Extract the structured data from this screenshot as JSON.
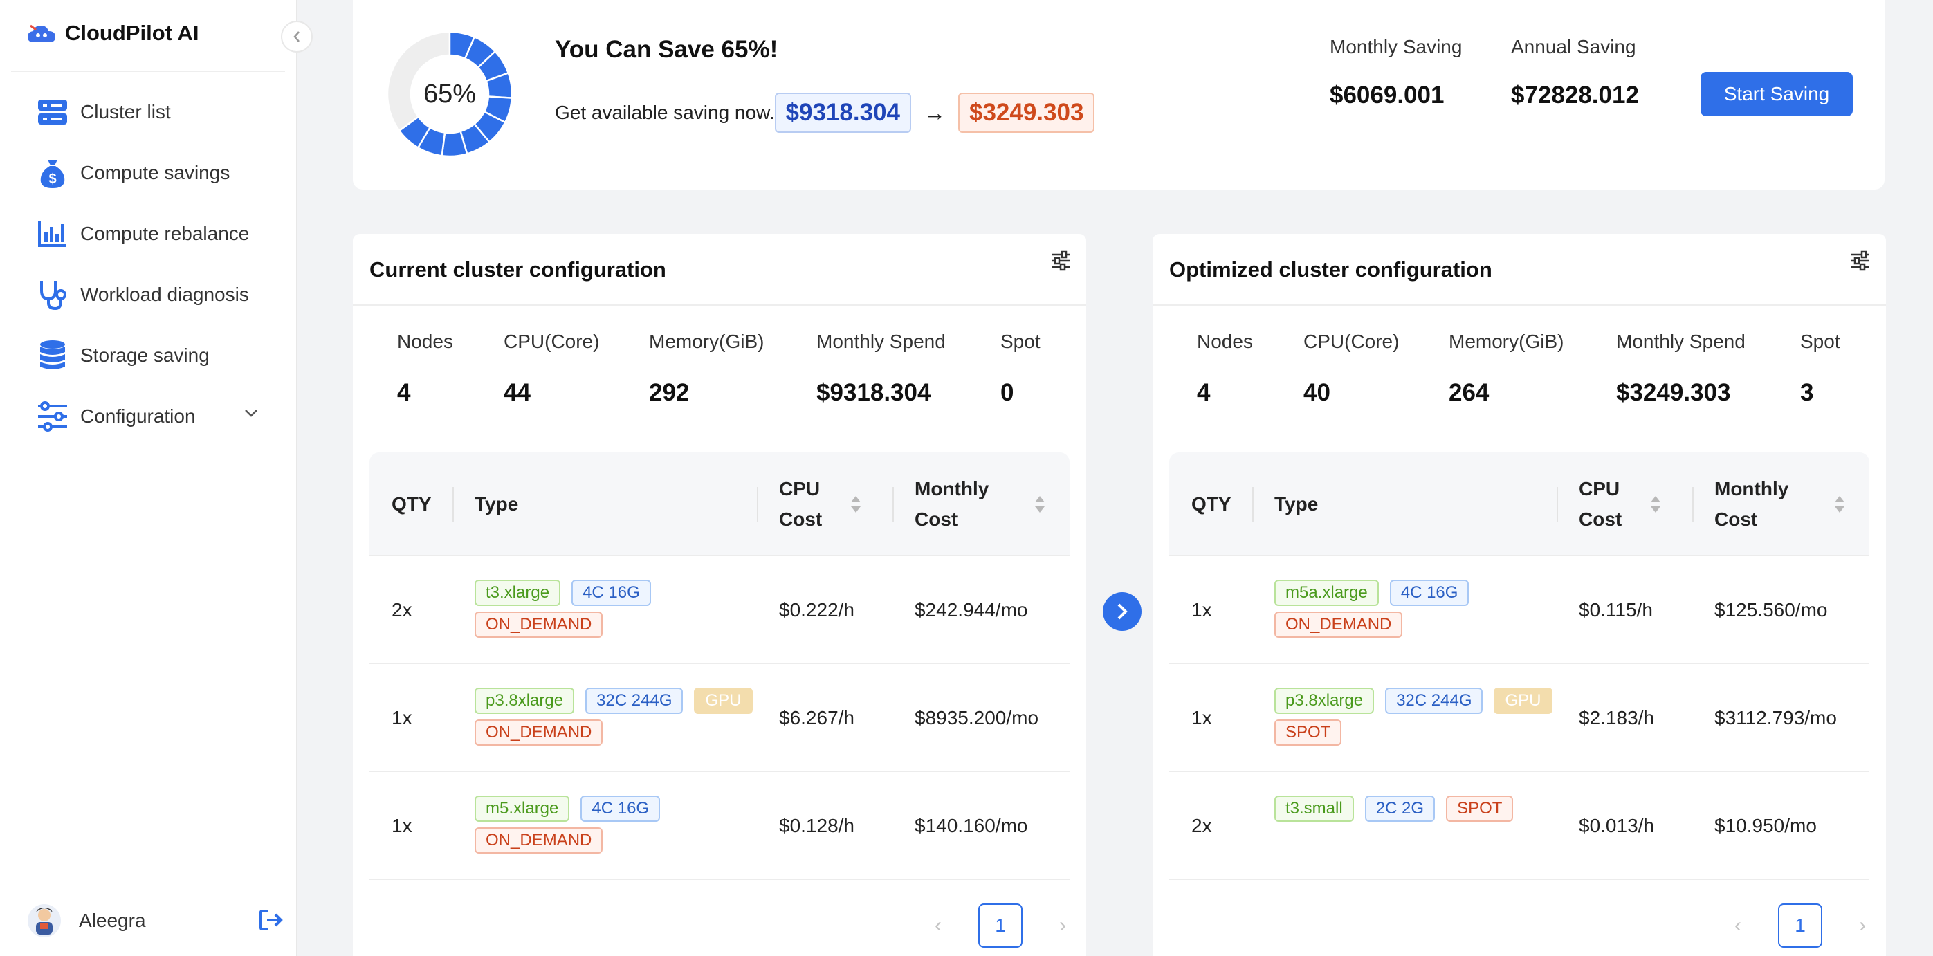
{
  "sidebar": {
    "brand": "CloudPilot AI",
    "items": [
      {
        "label": "Cluster list",
        "icon": "server-icon"
      },
      {
        "label": "Compute savings",
        "icon": "money-bag-icon"
      },
      {
        "label": "Compute rebalance",
        "icon": "bar-chart-icon"
      },
      {
        "label": "Workload diagnosis",
        "icon": "stethoscope-icon"
      },
      {
        "label": "Storage saving",
        "icon": "database-icon"
      },
      {
        "label": "Configuration",
        "icon": "sliders-icon"
      }
    ],
    "user": {
      "name": "Aleegra"
    }
  },
  "summary": {
    "percent": 65,
    "percent_label": "65%",
    "title": "You Can Save 65%!",
    "subtitle": "Get available saving now.",
    "from_amount": "$9318.304",
    "to_amount": "$3249.303",
    "monthly_label": "Monthly Saving",
    "monthly_value": "$6069.001",
    "annual_label": "Annual Saving",
    "annual_value": "$72828.012",
    "start_button": "Start Saving"
  },
  "current": {
    "title": "Current cluster configuration",
    "metrics": {
      "nodes_label": "Nodes",
      "nodes": "4",
      "cpu_label": "CPU(Core)",
      "cpu": "44",
      "mem_label": "Memory(GiB)",
      "mem": "292",
      "spend_label": "Monthly Spend",
      "spend": "$9318.304",
      "spot_label": "Spot",
      "spot": "0"
    },
    "headers": {
      "qty": "QTY",
      "type": "Type",
      "cpu1": "CPU",
      "cpu2": "Cost",
      "mon1": "Monthly",
      "mon2": "Cost"
    },
    "rows": [
      {
        "qty": "2x",
        "tags": [
          {
            "t": "t3.xlarge",
            "c": "green"
          },
          {
            "t": "4C 16G",
            "c": "blue"
          },
          {
            "t": "ON_DEMAND",
            "c": "red"
          }
        ],
        "cpu_cost": "$0.222/h",
        "monthly": "$242.944/mo"
      },
      {
        "qty": "1x",
        "tags": [
          {
            "t": "p3.8xlarge",
            "c": "green"
          },
          {
            "t": "32C 244G",
            "c": "blue"
          },
          {
            "t": "GPU",
            "c": "gold"
          },
          {
            "t": "ON_DEMAND",
            "c": "red"
          }
        ],
        "cpu_cost": "$6.267/h",
        "monthly": "$8935.200/mo"
      },
      {
        "qty": "1x",
        "tags": [
          {
            "t": "m5.xlarge",
            "c": "green"
          },
          {
            "t": "4C 16G",
            "c": "blue"
          },
          {
            "t": "ON_DEMAND",
            "c": "red"
          }
        ],
        "cpu_cost": "$0.128/h",
        "monthly": "$140.160/mo"
      }
    ],
    "page": "1"
  },
  "optimized": {
    "title": "Optimized cluster configuration",
    "metrics": {
      "nodes_label": "Nodes",
      "nodes": "4",
      "cpu_label": "CPU(Core)",
      "cpu": "40",
      "mem_label": "Memory(GiB)",
      "mem": "264",
      "spend_label": "Monthly Spend",
      "spend": "$3249.303",
      "spot_label": "Spot",
      "spot": "3"
    },
    "headers": {
      "qty": "QTY",
      "type": "Type",
      "cpu1": "CPU",
      "cpu2": "Cost",
      "mon1": "Monthly",
      "mon2": "Cost"
    },
    "rows": [
      {
        "qty": "1x",
        "tags": [
          {
            "t": "m5a.xlarge",
            "c": "green"
          },
          {
            "t": "4C 16G",
            "c": "blue"
          },
          {
            "t": "ON_DEMAND",
            "c": "red"
          }
        ],
        "cpu_cost": "$0.115/h",
        "monthly": "$125.560/mo"
      },
      {
        "qty": "1x",
        "tags": [
          {
            "t": "p3.8xlarge",
            "c": "green"
          },
          {
            "t": "32C 244G",
            "c": "blue"
          },
          {
            "t": "GPU",
            "c": "gold"
          },
          {
            "t": "SPOT",
            "c": "red"
          }
        ],
        "cpu_cost": "$2.183/h",
        "monthly": "$3112.793/mo"
      },
      {
        "qty": "2x",
        "tags": [
          {
            "t": "t3.small",
            "c": "green"
          },
          {
            "t": "2C 2G",
            "c": "blue"
          },
          {
            "t": "SPOT",
            "c": "red"
          }
        ],
        "cpu_cost": "$0.013/h",
        "monthly": "$10.950/mo"
      }
    ],
    "page": "1"
  },
  "colors": {
    "accent": "#2f6fe8",
    "donut_track": "#eeeeee"
  }
}
